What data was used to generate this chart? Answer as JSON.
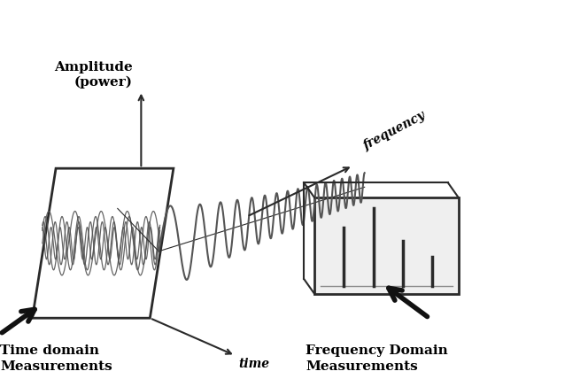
{
  "bg_color": "#ffffff",
  "amplitude_label": "Amplitude\n(power)",
  "time_label": "time",
  "frequency_label": "frequency",
  "time_domain_label": "Time domain\nMeasurements",
  "freq_domain_label": "Frequency Domain\nMeasurements",
  "line_color": "#2a2a2a",
  "wave_color": "#555555",
  "arrow_color": "#111111",
  "figsize": [
    6.64,
    4.28
  ],
  "dpi": 100
}
